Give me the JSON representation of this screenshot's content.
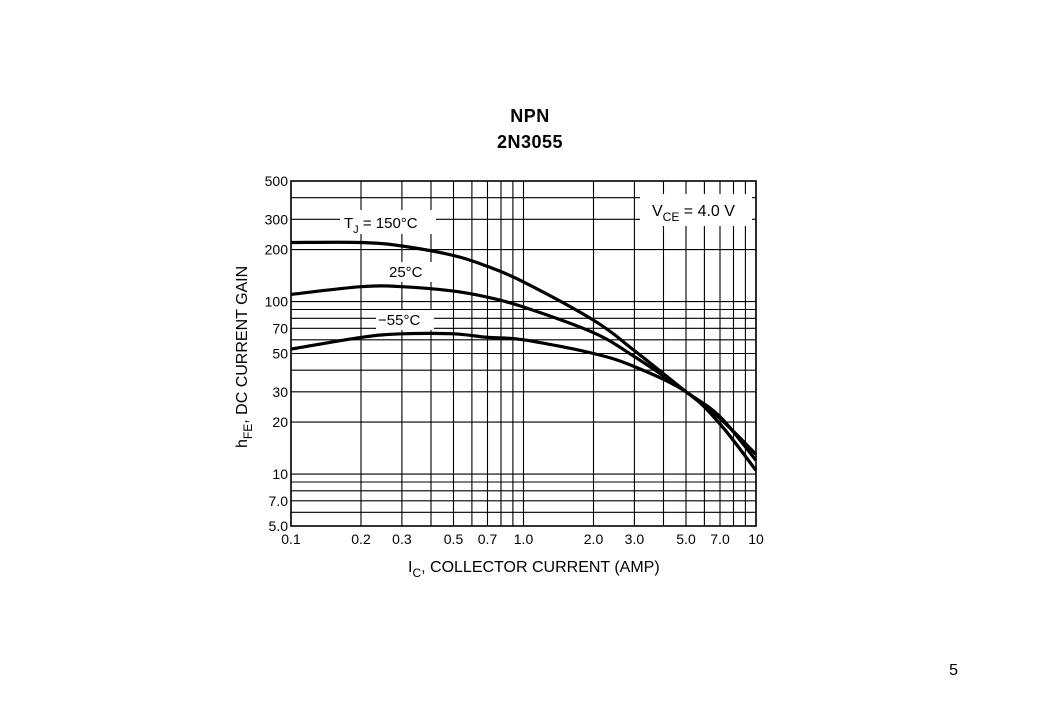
{
  "chart_data": {
    "type": "line",
    "title": "NPN",
    "subtitle": "2N3055",
    "xlabel": "I_C, COLLECTOR CURRENT (AMP)",
    "ylabel": "h_FE, DC CURRENT GAIN",
    "x_scale": "log",
    "y_scale": "log",
    "xlim": [
      0.1,
      10
    ],
    "ylim": [
      5.0,
      500
    ],
    "x_ticks": [
      "0.1",
      "0.2",
      "0.3",
      "0.5",
      "0.7",
      "1.0",
      "2.0",
      "3.0",
      "5.0",
      "7.0",
      "10"
    ],
    "y_ticks": [
      "500",
      "300",
      "200",
      "100",
      "70",
      "50",
      "30",
      "20",
      "10",
      "7.0",
      "5.0"
    ],
    "grid": true,
    "annotation": "V_CE = 4.0 V",
    "series": [
      {
        "name": "T_J = 150°C",
        "x": [
          0.1,
          0.2,
          0.3,
          0.5,
          0.7,
          1.0,
          2.0,
          3.0,
          5.0,
          7.0,
          10
        ],
        "y": [
          220,
          220,
          210,
          185,
          160,
          130,
          78,
          52,
          30,
          21,
          13
        ]
      },
      {
        "name": "25°C",
        "x": [
          0.1,
          0.2,
          0.3,
          0.5,
          0.7,
          1.0,
          2.0,
          3.0,
          5.0,
          7.0,
          10
        ],
        "y": [
          110,
          122,
          122,
          115,
          106,
          93,
          66,
          48,
          30,
          21.5,
          12
        ]
      },
      {
        "name": "−55°C",
        "x": [
          0.1,
          0.2,
          0.3,
          0.5,
          0.7,
          1.0,
          2.0,
          3.0,
          5.0,
          7.0,
          10
        ],
        "y": [
          53,
          62,
          65,
          65,
          62,
          60,
          50,
          42,
          30,
          19.5,
          10.5
        ]
      }
    ]
  },
  "labels": {
    "title": "NPN",
    "subtitle": "2N3055",
    "series_label_150": {
      "pre": "T",
      "sub": "J",
      "post": " = 150°C"
    },
    "series_label_25": "25°C",
    "series_label_m55": "−55°C",
    "vce": {
      "pre": "V",
      "sub": "CE",
      "post": " = 4.0 V"
    },
    "xlabel": {
      "pre": "I",
      "sub": "C",
      "post": ", COLLECTOR CURRENT (AMP)"
    },
    "ylabel": {
      "pre": "h",
      "sub": "FE",
      "post": ", DC CURRENT GAIN"
    }
  },
  "page_number": "5"
}
